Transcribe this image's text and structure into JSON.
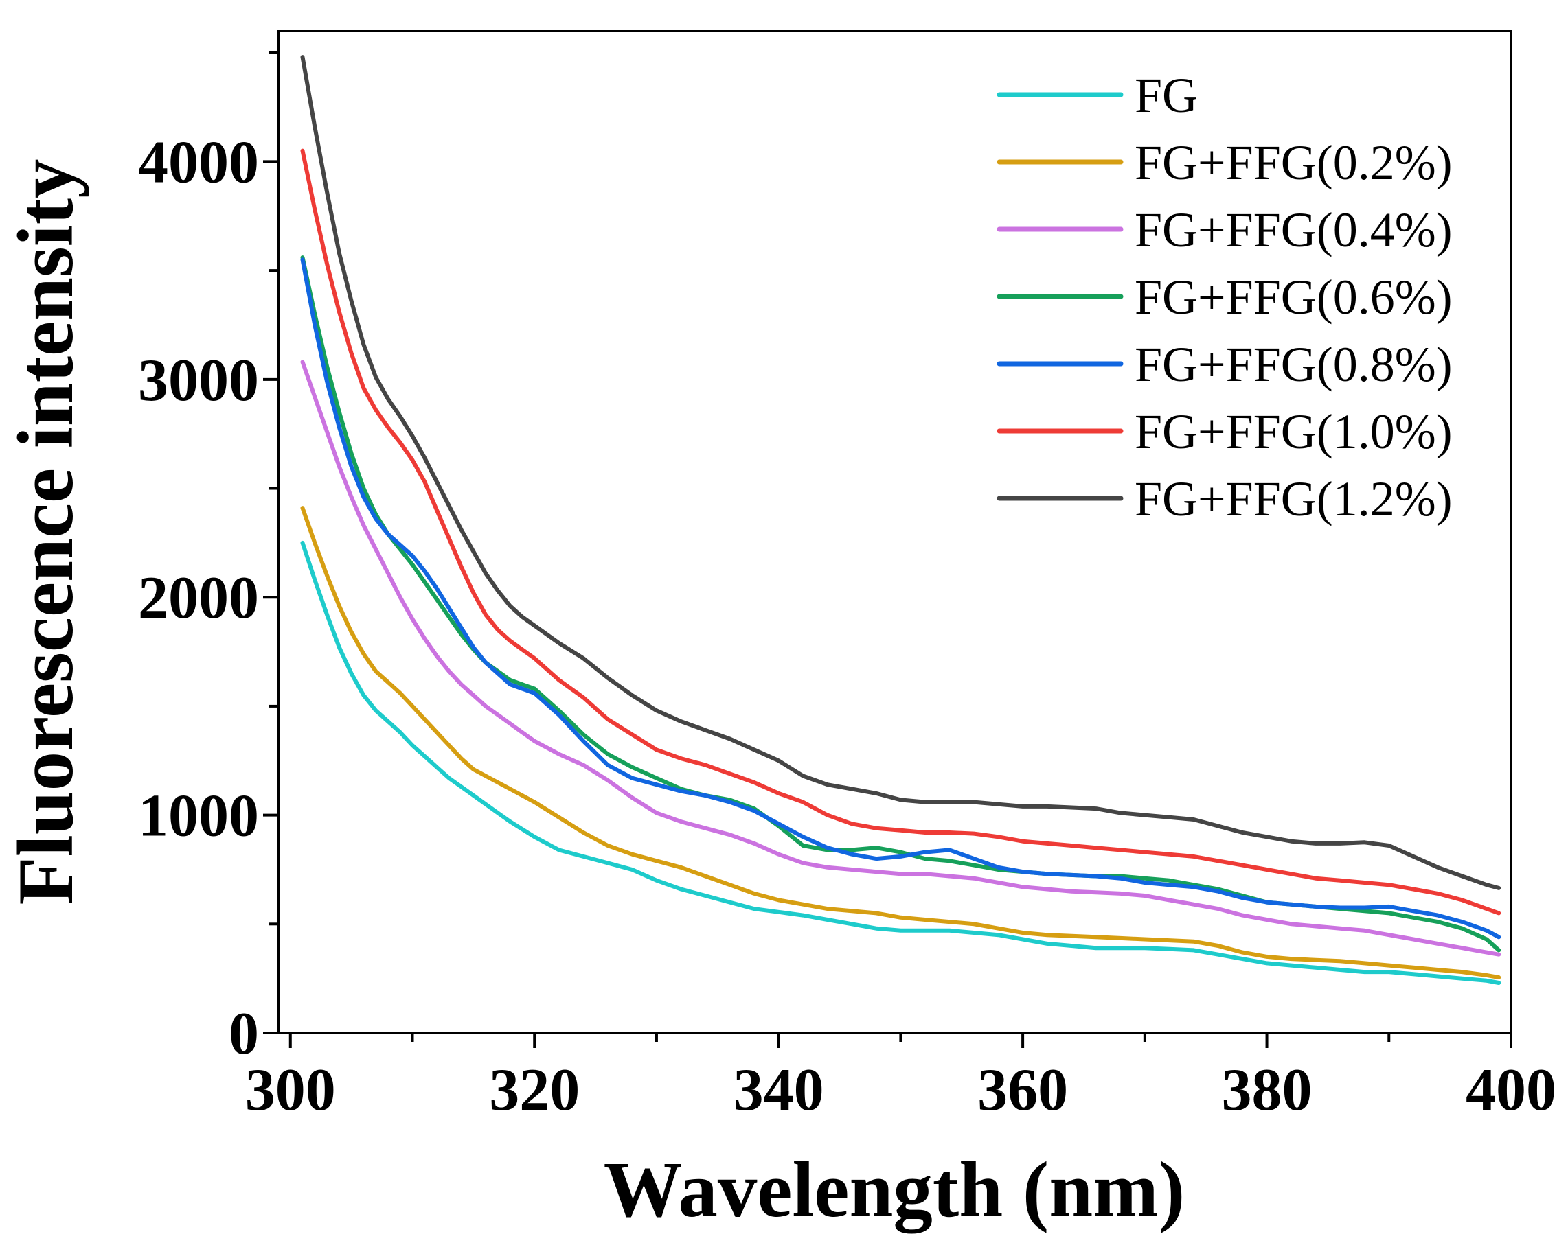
{
  "chart_data": {
    "type": "line",
    "title": "",
    "xlabel": "Wavelength (nm)",
    "ylabel": "Fluorescence intensity",
    "xlim": [
      299,
      400
    ],
    "ylim": [
      0,
      4600
    ],
    "x_ticks": [
      300,
      320,
      340,
      360,
      380,
      400
    ],
    "x_tick_labels": [
      "300",
      "320",
      "340",
      "360",
      "380",
      "400"
    ],
    "y_ticks": [
      0,
      1000,
      2000,
      3000,
      4000
    ],
    "y_tick_labels": [
      "0",
      "1000",
      "2000",
      "3000",
      "4000"
    ],
    "legend_position": "top-right",
    "grid": false,
    "x": [
      301,
      302,
      303,
      304,
      305,
      306,
      307,
      308,
      309,
      310,
      311,
      312,
      313,
      314,
      315,
      316,
      317,
      318,
      319,
      320,
      322,
      324,
      326,
      328,
      330,
      332,
      334,
      336,
      338,
      340,
      342,
      344,
      346,
      348,
      350,
      352,
      354,
      356,
      358,
      360,
      362,
      364,
      366,
      368,
      370,
      372,
      374,
      376,
      378,
      380,
      382,
      384,
      386,
      388,
      390,
      392,
      394,
      396,
      398,
      399
    ],
    "series": [
      {
        "name": "FG",
        "color": "#1ECBCB",
        "values": [
          2250,
          2080,
          1920,
          1770,
          1650,
          1550,
          1480,
          1430,
          1380,
          1320,
          1270,
          1220,
          1170,
          1130,
          1090,
          1050,
          1010,
          970,
          935,
          900,
          840,
          810,
          780,
          750,
          700,
          660,
          630,
          600,
          570,
          555,
          540,
          520,
          500,
          480,
          470,
          470,
          470,
          460,
          450,
          430,
          410,
          400,
          390,
          390,
          390,
          385,
          380,
          360,
          340,
          320,
          310,
          300,
          290,
          280,
          280,
          270,
          260,
          250,
          240,
          230
        ]
      },
      {
        "name": "FG+FFG(0.2%)",
        "color": "#D69E12",
        "values": [
          2410,
          2250,
          2100,
          1960,
          1840,
          1740,
          1660,
          1610,
          1560,
          1500,
          1440,
          1380,
          1320,
          1260,
          1210,
          1180,
          1150,
          1120,
          1090,
          1060,
          990,
          920,
          860,
          820,
          790,
          760,
          720,
          680,
          640,
          610,
          590,
          570,
          560,
          550,
          530,
          520,
          510,
          500,
          480,
          460,
          450,
          445,
          440,
          435,
          430,
          425,
          420,
          400,
          370,
          350,
          340,
          335,
          330,
          320,
          310,
          300,
          290,
          280,
          265,
          255
        ]
      },
      {
        "name": "FG+FFG(0.4%)",
        "color": "#CB73E0",
        "values": [
          3080,
          2920,
          2760,
          2600,
          2460,
          2330,
          2220,
          2110,
          2000,
          1900,
          1810,
          1730,
          1660,
          1600,
          1550,
          1500,
          1460,
          1420,
          1380,
          1340,
          1280,
          1230,
          1160,
          1080,
          1010,
          970,
          940,
          910,
          870,
          820,
          780,
          760,
          750,
          740,
          730,
          730,
          720,
          710,
          690,
          670,
          660,
          650,
          645,
          640,
          630,
          610,
          590,
          570,
          540,
          520,
          500,
          490,
          480,
          470,
          450,
          430,
          410,
          390,
          370,
          360
        ]
      },
      {
        "name": "FG+FFG(0.6%)",
        "color": "#16A05A",
        "values": [
          3560,
          3300,
          3060,
          2850,
          2660,
          2500,
          2380,
          2290,
          2220,
          2150,
          2070,
          1990,
          1910,
          1830,
          1760,
          1700,
          1660,
          1620,
          1600,
          1580,
          1480,
          1370,
          1280,
          1220,
          1170,
          1120,
          1090,
          1070,
          1030,
          950,
          860,
          840,
          840,
          850,
          830,
          800,
          790,
          770,
          750,
          740,
          730,
          725,
          720,
          720,
          710,
          700,
          680,
          660,
          630,
          600,
          590,
          580,
          570,
          560,
          550,
          530,
          510,
          480,
          430,
          380
        ]
      },
      {
        "name": "FG+FFG(0.8%)",
        "color": "#1166E0",
        "values": [
          3550,
          3250,
          2990,
          2780,
          2600,
          2460,
          2360,
          2290,
          2240,
          2190,
          2120,
          2040,
          1950,
          1860,
          1770,
          1700,
          1650,
          1600,
          1580,
          1560,
          1460,
          1340,
          1230,
          1170,
          1140,
          1110,
          1090,
          1060,
          1020,
          960,
          900,
          850,
          820,
          800,
          810,
          830,
          840,
          800,
          760,
          740,
          730,
          725,
          720,
          710,
          690,
          680,
          670,
          650,
          620,
          600,
          590,
          580,
          575,
          575,
          580,
          560,
          540,
          510,
          470,
          440
        ]
      },
      {
        "name": "FG+FFG(1.0%)",
        "color": "#EE3B36",
        "values": [
          4050,
          3780,
          3530,
          3310,
          3120,
          2960,
          2860,
          2780,
          2710,
          2630,
          2530,
          2400,
          2270,
          2140,
          2020,
          1920,
          1850,
          1800,
          1760,
          1720,
          1620,
          1540,
          1440,
          1370,
          1300,
          1260,
          1230,
          1190,
          1150,
          1100,
          1060,
          1000,
          960,
          940,
          930,
          920,
          920,
          915,
          900,
          880,
          870,
          860,
          850,
          840,
          830,
          820,
          810,
          790,
          770,
          750,
          730,
          710,
          700,
          690,
          680,
          660,
          640,
          610,
          570,
          550
        ]
      },
      {
        "name": "FG+FFG(1.2%)",
        "color": "#454545",
        "values": [
          4480,
          4160,
          3860,
          3580,
          3360,
          3160,
          3010,
          2910,
          2830,
          2740,
          2640,
          2530,
          2420,
          2310,
          2210,
          2110,
          2030,
          1960,
          1910,
          1870,
          1790,
          1720,
          1630,
          1550,
          1480,
          1430,
          1390,
          1350,
          1300,
          1250,
          1180,
          1140,
          1120,
          1100,
          1070,
          1060,
          1060,
          1060,
          1050,
          1040,
          1040,
          1035,
          1030,
          1010,
          1000,
          990,
          980,
          950,
          920,
          900,
          880,
          870,
          870,
          875,
          860,
          810,
          760,
          720,
          680,
          665
        ]
      }
    ]
  }
}
